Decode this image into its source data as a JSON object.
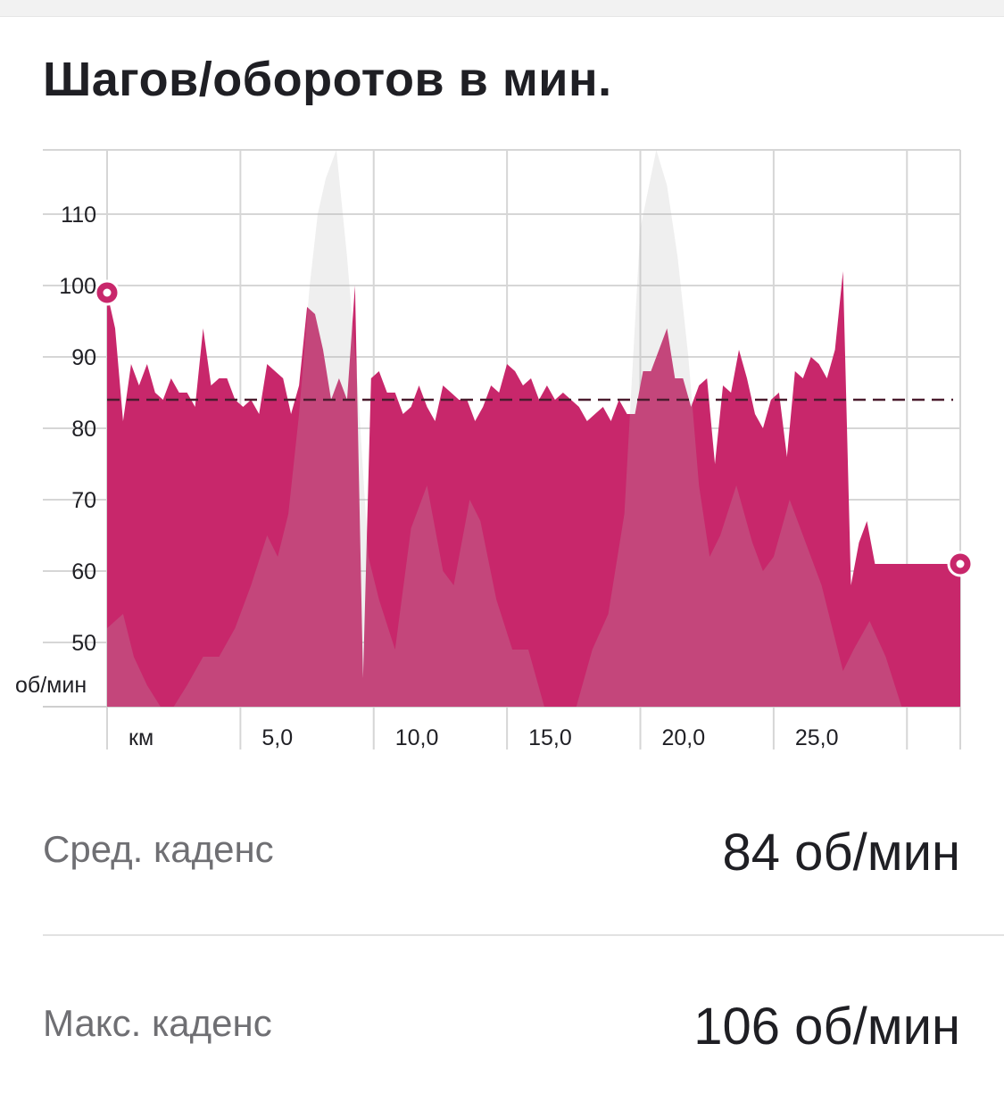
{
  "header": {
    "title": "Шагов/оборотов в мин."
  },
  "chart_data": {
    "type": "area",
    "ylabel": "об/мин",
    "xlabel": "км",
    "x_tick_labels": [
      "км",
      "5,0",
      "10,0",
      "15,0",
      "20,0",
      "25,0"
    ],
    "x_ticks": [
      0,
      5,
      10,
      15,
      20,
      25
    ],
    "y_ticks": [
      50,
      60,
      70,
      80,
      90,
      100,
      110
    ],
    "xlim": [
      0,
      32
    ],
    "ylim": [
      41,
      119
    ],
    "grid": true,
    "average": 84,
    "colors": {
      "cadence": "#c8276b",
      "elevation": "#b7b7b7",
      "average_line": "#4a1c2e",
      "grid": "#d6d6d6"
    },
    "series": [
      {
        "kind": "cadence",
        "x": [
          0.0,
          0.3,
          0.6,
          0.9,
          1.2,
          1.5,
          1.8,
          2.1,
          2.4,
          2.7,
          3.0,
          3.3,
          3.6,
          3.9,
          4.2,
          4.5,
          4.8,
          5.1,
          5.4,
          5.7,
          6.0,
          6.3,
          6.6,
          6.9,
          7.2,
          7.5,
          7.8,
          8.1,
          8.4,
          8.7,
          9.0,
          9.3,
          9.6,
          9.9,
          10.2,
          10.5,
          10.8,
          11.1,
          11.4,
          11.7,
          12.0,
          12.3,
          12.6,
          12.9,
          13.2,
          13.5,
          13.8,
          14.1,
          14.4,
          14.7,
          15.0,
          15.3,
          15.6,
          15.9,
          16.2,
          16.5,
          16.8,
          17.1,
          17.4,
          17.7,
          18.0,
          18.3,
          18.6,
          18.9,
          19.2,
          19.5,
          19.8,
          20.1,
          20.4,
          20.7,
          21.0,
          21.3,
          21.6,
          21.9,
          22.2,
          22.5,
          22.8,
          23.1,
          23.4,
          23.7,
          24.0,
          24.3,
          24.6,
          24.9,
          25.2,
          25.5,
          25.8,
          26.1,
          26.4,
          26.7,
          27.0,
          27.3,
          27.6,
          27.9,
          28.2,
          28.5,
          28.8,
          29.1,
          29.4,
          29.7,
          30.0,
          30.3,
          30.6,
          30.9,
          31.2,
          31.5,
          31.8,
          32.0
        ],
        "y": [
          99,
          94,
          81,
          89,
          86,
          89,
          85,
          84,
          87,
          85,
          85,
          83,
          94,
          86,
          87,
          87,
          84,
          83,
          84,
          82,
          89,
          88,
          87,
          82,
          86,
          97,
          96,
          91,
          84,
          87,
          84,
          100,
          45,
          87,
          88,
          85,
          85,
          82,
          83,
          86,
          83,
          81,
          86,
          85,
          84,
          84,
          81,
          83,
          86,
          85,
          89,
          88,
          86,
          87,
          84,
          86,
          84,
          85,
          84,
          83,
          81,
          82,
          83,
          81,
          84,
          82,
          82,
          88,
          88,
          91,
          94,
          87,
          87,
          83,
          86,
          87,
          75,
          86,
          85,
          91,
          87,
          82,
          80,
          84,
          85,
          76,
          88,
          87,
          90,
          89,
          87,
          91,
          102,
          58,
          64,
          67,
          61,
          61,
          61,
          61,
          61,
          61,
          61,
          61,
          61,
          61,
          61,
          61
        ],
        "end_marker": 61,
        "start_marker": 99
      },
      {
        "kind": "elevation",
        "x": [
          0.0,
          0.6,
          1.0,
          1.5,
          2.0,
          2.5,
          3.0,
          3.6,
          4.2,
          4.8,
          5.4,
          6.0,
          6.4,
          6.8,
          7.2,
          7.6,
          7.9,
          8.2,
          8.6,
          9.0,
          9.4,
          9.8,
          10.2,
          10.8,
          11.4,
          12.0,
          12.6,
          13.0,
          13.6,
          14.0,
          14.6,
          15.2,
          15.8,
          16.4,
          17.0,
          17.6,
          18.2,
          18.8,
          19.4,
          20.0,
          20.6,
          21.0,
          21.4,
          21.8,
          22.2,
          22.6,
          23.0,
          23.6,
          24.2,
          24.6,
          25.0,
          25.6,
          26.2,
          26.8,
          27.2,
          27.6,
          28.0,
          28.6,
          29.2,
          29.8,
          30.4,
          31.0,
          31.6,
          32.0
        ],
        "y": [
          52,
          54,
          48,
          44,
          41,
          41,
          44,
          48,
          48,
          52,
          58,
          65,
          62,
          68,
          82,
          100,
          110,
          115,
          119,
          104,
          86,
          62,
          56,
          49,
          66,
          72,
          60,
          58,
          70,
          67,
          56,
          49,
          49,
          41,
          41,
          41,
          49,
          54,
          68,
          108,
          119,
          114,
          104,
          90,
          72,
          62,
          65,
          72,
          64,
          60,
          62,
          70,
          64,
          58,
          52,
          46,
          49,
          53,
          48,
          41,
          41,
          41,
          41,
          41
        ]
      }
    ]
  },
  "stats": [
    {
      "label": "Сред. каденс",
      "value": "84 об/мин"
    },
    {
      "label": "Макс. каденс",
      "value": "106 об/мин"
    }
  ]
}
